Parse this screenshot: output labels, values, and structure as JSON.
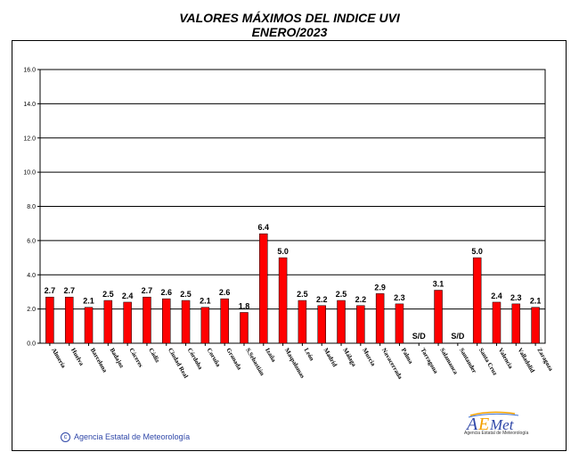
{
  "title_line1": "VALORES MÁXIMOS DEL INDICE UVI",
  "title_line2": "ENERO/2023",
  "copyright": "Agencia Estatal de Meteorología",
  "logo": {
    "brand": "AEMet",
    "subtitle": "Agencia Estatal de Meteorología"
  },
  "colors": {
    "bar": "#ff0000",
    "bar_edge": "#000000",
    "grid": "#000000",
    "text": "#000000",
    "copyright": "#2f47a8"
  },
  "chart_data": {
    "type": "bar",
    "title": "VALORES MÁXIMOS DEL INDICE UVI",
    "subtitle": "ENERO/2023",
    "ylim": [
      0,
      16
    ],
    "yticks": [
      "0.0",
      "2.0",
      "4.0",
      "6.0",
      "8.0",
      "10.0",
      "12.0",
      "14.0",
      "16.0"
    ],
    "grid": true,
    "categories": [
      "Almería",
      "Huelva",
      "Barcelona",
      "Badajoz",
      "Cáceres",
      "Cádiz",
      "Ciudad Real",
      "Córdoba",
      "Coruña",
      "Granada",
      "S.Sebastián",
      "Izaña",
      "Maspalomas",
      "León",
      "Madrid",
      "Málaga",
      "Murcia",
      "Navacerrada",
      "Palma",
      "Tarragona",
      "Salamanca",
      "Santander",
      "Santa Cruz",
      "Valencia",
      "Valladolid",
      "Zaragoza"
    ],
    "values": [
      2.7,
      2.7,
      2.1,
      2.5,
      2.4,
      2.7,
      2.6,
      2.5,
      2.1,
      2.6,
      1.8,
      6.4,
      5.0,
      2.5,
      2.2,
      2.5,
      2.2,
      2.9,
      2.3,
      null,
      3.1,
      null,
      5.0,
      2.4,
      2.3,
      2.1
    ],
    "labels": [
      "2.7",
      "2.7",
      "2.1",
      "2.5",
      "2.4",
      "2.7",
      "2.6",
      "2.5",
      "2.1",
      "2.6",
      "1.8",
      "6.4",
      "5.0",
      "2.5",
      "2.2",
      "2.5",
      "2.2",
      "2.9",
      "2.3",
      "S/D",
      "3.1",
      "S/D",
      "5.0",
      "2.4",
      "2.3",
      "2.1"
    ]
  }
}
